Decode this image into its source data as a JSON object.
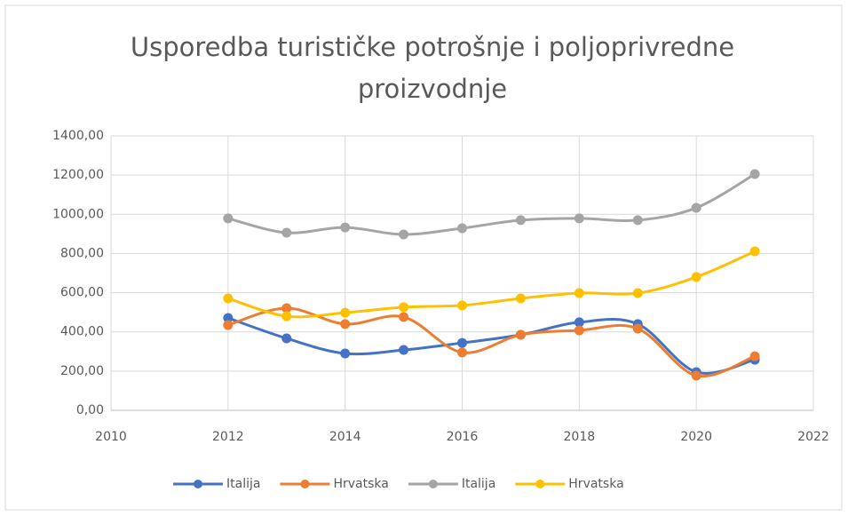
{
  "chart_data": {
    "type": "line",
    "title": "Usporedba turističke potrošnje i poljoprivredne proizvodnje",
    "x": [
      2012,
      2013,
      2014,
      2015,
      2016,
      2017,
      2018,
      2019,
      2020,
      2021
    ],
    "series": [
      {
        "name": "Italija",
        "color": "#4472c4",
        "values": [
          471,
          367,
          290,
          308,
          344,
          385,
          449,
          440,
          195,
          258
        ]
      },
      {
        "name": "Hrvatska",
        "color": "#ed7d31",
        "values": [
          435,
          521,
          440,
          476,
          295,
          385,
          408,
          417,
          177,
          276
        ]
      },
      {
        "name": "Italija",
        "color": "#a5a5a5",
        "values": [
          979,
          906,
          933,
          897,
          929,
          970,
          979,
          970,
          1033,
          1205
        ]
      },
      {
        "name": "Hrvatska",
        "color": "#ffc000",
        "values": [
          571,
          480,
          498,
          526,
          535,
          571,
          598,
          598,
          680,
          811
        ]
      }
    ],
    "xlim": [
      2010,
      2022
    ],
    "xticks": [
      2010,
      2012,
      2014,
      2016,
      2018,
      2020,
      2022
    ],
    "ylim": [
      0,
      1400
    ],
    "yticks": [
      {
        "value": 0,
        "label": "0,00"
      },
      {
        "value": 200,
        "label": "200,00"
      },
      {
        "value": 400,
        "label": "400,00"
      },
      {
        "value": 600,
        "label": "600,00"
      },
      {
        "value": 800,
        "label": "800,00"
      },
      {
        "value": 1000,
        "label": "1000,00"
      },
      {
        "value": 1200,
        "label": "1200,00"
      },
      {
        "value": 1400,
        "label": "1400,00"
      }
    ],
    "grid": true,
    "smooth": true,
    "legend": "bottom"
  }
}
